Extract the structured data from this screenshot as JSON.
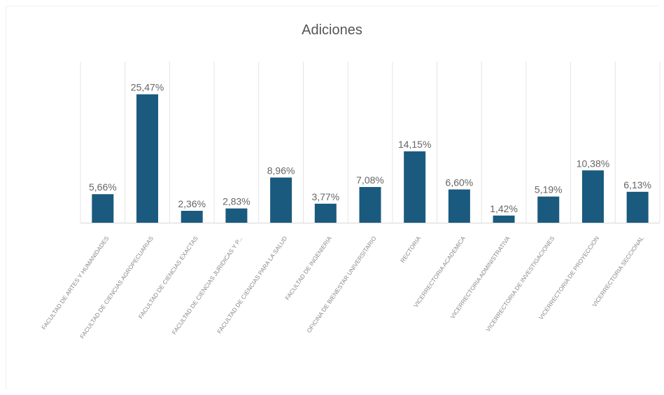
{
  "chart_data": {
    "type": "bar",
    "title": "Adiciones",
    "xlabel": "",
    "ylabel": "",
    "categories": [
      "FACULTAD DE ARTES Y HUMANIDADES",
      "FACULTAD DE CIENCIAS AGROPECUARIAS",
      "FACULTAD DE CIENCIAS EXACTAS",
      "FACULTAD DE CIENCIAS JURIDICAS Y P...",
      "FACULTAD DE CIENCIAS PARA LA SALUD",
      "FACULTAD DE INGENIERIA",
      "OFICINA DE BIENESTAR UNIVERSITARIO",
      "RECTORIA",
      "VICERRECTORIA ACADEMICA",
      "VICERRECTORIA ADMINISTRATIVA",
      "VICERRECTORIA DE INVESTIGACIONES",
      "VICERRECTORIA DE PROYECCION",
      "VICERRECTORIA SECCIONAL"
    ],
    "values": [
      5.66,
      25.47,
      2.36,
      2.83,
      8.96,
      3.77,
      7.08,
      14.15,
      6.6,
      1.42,
      5.19,
      10.38,
      6.13
    ],
    "value_labels": [
      "5,66%",
      "25,47%",
      "2,36%",
      "2,83%",
      "8,96%",
      "3,77%",
      "7,08%",
      "14,15%",
      "6,60%",
      "1,42%",
      "5,19%",
      "10,38%",
      "6,13%"
    ],
    "unit": "%",
    "ylim": [
      0,
      30
    ],
    "grid": "vertical",
    "legend": "none",
    "bar_color": "#1a5a7e",
    "grid_color": "#e4e4e4",
    "label_color": "#666666"
  }
}
